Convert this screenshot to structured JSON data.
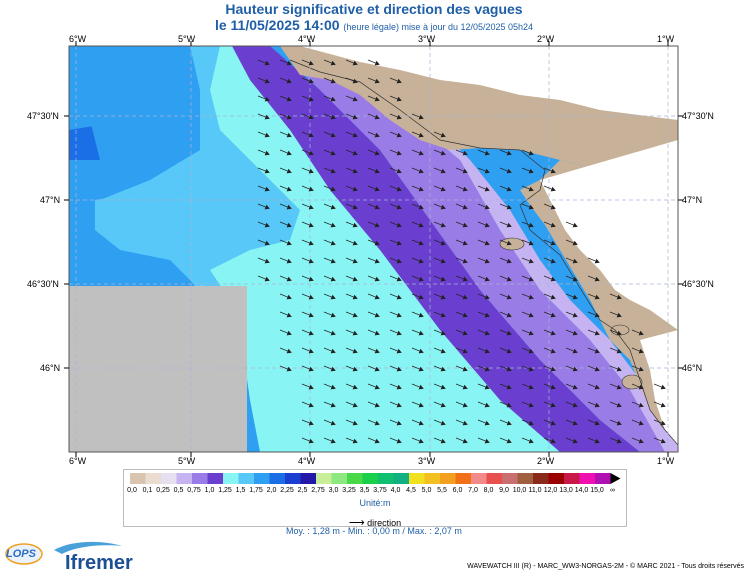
{
  "header": {
    "title": "Hauteur significative et direction des vagues",
    "date": "le 11/05/2025 14:00",
    "subtitle": "(heure légale) mise à jour du 12/05/2025 05h24"
  },
  "map": {
    "lon_labels": [
      "6°W",
      "5°W",
      "4°W",
      "3°W",
      "2°W",
      "1°W"
    ],
    "lat_labels": [
      "47°30'N",
      "47°N",
      "46°30'N",
      "46°N"
    ],
    "colors": {
      "land": "#c7b299",
      "nodata": "#c0c0c0",
      "grid": "#aab4d6"
    }
  },
  "legend": {
    "labels": [
      "0,0",
      "0,1",
      "0,25",
      "0,5",
      "0,75",
      "1,0",
      "1,25",
      "1,5",
      "1,75",
      "2,0",
      "2,25",
      "2,5",
      "2,75",
      "3,0",
      "3,25",
      "3,5",
      "3,75",
      "4,0",
      "4,5",
      "5,0",
      "5,5",
      "6,0",
      "7,0",
      "8,0",
      "9,0",
      "10,0",
      "11,0",
      "12,0",
      "13,0",
      "14,0",
      "15,0",
      "∞"
    ],
    "colors": [
      "#d9c4b0",
      "#eadccf",
      "#e6dff0",
      "#c6b4f2",
      "#9a7ce6",
      "#6a3fcf",
      "#88f4f4",
      "#57c8f7",
      "#2f9ff2",
      "#1a6fe6",
      "#1b3ed2",
      "#2418a8",
      "#c8ee9a",
      "#8ee880",
      "#48d848",
      "#1ad04a",
      "#10c070",
      "#10b080",
      "#f0e020",
      "#f2c020",
      "#f2a020",
      "#f27018",
      "#f28a8a",
      "#e85050",
      "#c87070",
      "#a06040",
      "#8a2a1a",
      "#9a0000",
      "#c81848",
      "#f010b0",
      "#b010b0"
    ],
    "unit": "Unité:m",
    "direction_label": "direction"
  },
  "stats": "Moy. : 1,28 m   -   Min. : 0,00 m / Max. : 2,07 m",
  "footer": {
    "credit": "WAVEWATCH III (R) - MARC_WW3-NORGAS-2M - © MARC 2021 - Tous droits réservés",
    "logo_lops": "LOPS",
    "logo_ifremer": "Ifremer"
  }
}
